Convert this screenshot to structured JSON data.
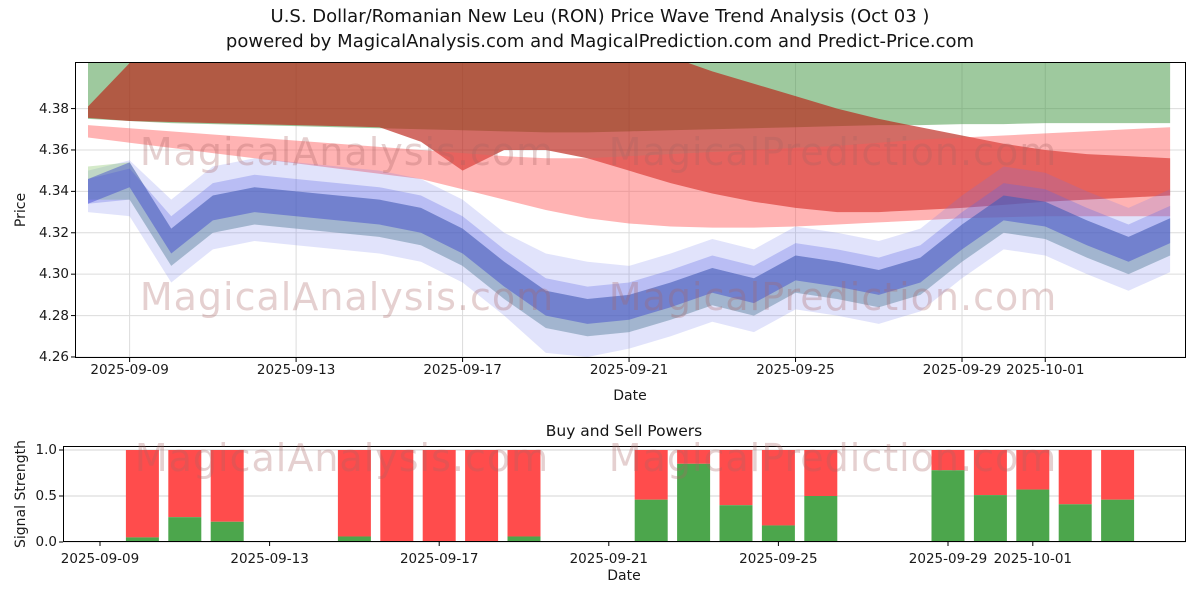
{
  "title": {
    "line1": "U.S. Dollar/Romanian New Leu (RON) Price Wave Trend Analysis (Oct 03 )",
    "line2": "powered by MagicalAnalysis.com and MagicalPrediction.com and Predict-Price.com"
  },
  "watermarks": {
    "analysis": "MagicalAnalysis.com",
    "prediction": "MagicalPrediction.com"
  },
  "chart_data": [
    {
      "name": "price_wave_trend",
      "type": "area",
      "xlabel": "Date",
      "ylabel": "Price",
      "ylim": [
        4.2595,
        4.4025
      ],
      "grid": "both",
      "x_dates": [
        "2025-09-08",
        "2025-09-09",
        "2025-09-10",
        "2025-09-11",
        "2025-09-12",
        "2025-09-13",
        "2025-09-14",
        "2025-09-15",
        "2025-09-16",
        "2025-09-17",
        "2025-09-18",
        "2025-09-19",
        "2025-09-20",
        "2025-09-21",
        "2025-09-22",
        "2025-09-23",
        "2025-09-24",
        "2025-09-25",
        "2025-09-26",
        "2025-09-27",
        "2025-09-28",
        "2025-09-29",
        "2025-09-30",
        "2025-10-01",
        "2025-10-02",
        "2025-10-03",
        "2025-10-04"
      ],
      "x_ticks": [
        {
          "label": "2025-09-09",
          "day": 1
        },
        {
          "label": "2025-09-13",
          "day": 5
        },
        {
          "label": "2025-09-17",
          "day": 9
        },
        {
          "label": "2025-09-21",
          "day": 13
        },
        {
          "label": "2025-09-25",
          "day": 17
        },
        {
          "label": "2025-09-29",
          "day": 21
        },
        {
          "label": "2025-10-01",
          "day": 23
        }
      ],
      "y_ticks": [
        {
          "label": "4.26",
          "value": 4.26
        },
        {
          "label": "4.28",
          "value": 4.28
        },
        {
          "label": "4.30",
          "value": 4.3
        },
        {
          "label": "4.32",
          "value": 4.32
        },
        {
          "label": "4.34",
          "value": 4.34
        },
        {
          "label": "4.36",
          "value": 4.36
        },
        {
          "label": "4.38",
          "value": 4.38
        }
      ],
      "bands": [
        {
          "name": "upper-green-band",
          "color": "rgba(62,148,62,0.50)",
          "top": [
            4.415,
            4.415,
            4.415,
            4.415,
            4.415,
            4.415,
            4.415,
            4.415,
            4.415,
            4.415,
            4.415,
            4.415,
            4.415,
            4.415,
            4.415,
            4.415,
            4.415,
            4.415,
            4.415,
            4.415,
            4.415,
            4.415,
            4.415,
            4.415,
            4.415,
            4.415,
            4.415
          ],
          "bottom": [
            4.375,
            4.374,
            4.373,
            4.3725,
            4.372,
            4.3715,
            4.371,
            4.3705,
            4.37,
            4.3695,
            4.369,
            4.3685,
            4.3685,
            4.369,
            4.3695,
            4.37,
            4.3705,
            4.371,
            4.3715,
            4.372,
            4.372,
            4.3725,
            4.3725,
            4.373,
            4.373,
            4.373,
            4.373
          ]
        },
        {
          "name": "upper-red-band",
          "color": "rgba(186,32,22,0.66)",
          "top": [
            4.381,
            4.402,
            4.415,
            4.415,
            4.415,
            4.415,
            4.415,
            4.415,
            4.415,
            4.415,
            4.415,
            4.415,
            4.414,
            4.412,
            4.405,
            4.398,
            4.392,
            4.386,
            4.38,
            4.375,
            4.371,
            4.367,
            4.363,
            4.36,
            4.358,
            4.357,
            4.356
          ],
          "bottom": [
            4.3755,
            4.374,
            4.3735,
            4.373,
            4.3725,
            4.372,
            4.3715,
            4.371,
            4.364,
            4.35,
            4.36,
            4.36,
            4.356,
            4.35,
            4.344,
            4.339,
            4.335,
            4.332,
            4.33,
            4.33,
            4.331,
            4.332,
            4.3335,
            4.335,
            4.336,
            4.337,
            4.338
          ]
        },
        {
          "name": "pink-band",
          "color": "rgba(255,86,86,0.45)",
          "top": [
            4.372,
            4.3705,
            4.369,
            4.3675,
            4.366,
            4.3645,
            4.363,
            4.3615,
            4.36,
            4.3585,
            4.357,
            4.356,
            4.356,
            4.357,
            4.358,
            4.359,
            4.36,
            4.361,
            4.362,
            4.3635,
            4.365,
            4.366,
            4.367,
            4.368,
            4.369,
            4.37,
            4.371
          ],
          "bottom": [
            4.366,
            4.3635,
            4.361,
            4.3585,
            4.356,
            4.3535,
            4.351,
            4.3485,
            4.346,
            4.341,
            4.336,
            4.331,
            4.327,
            4.3245,
            4.323,
            4.3225,
            4.3225,
            4.323,
            4.324,
            4.325,
            4.326,
            4.327,
            4.3275,
            4.328,
            4.328,
            4.328,
            4.328
          ]
        },
        {
          "name": "blue-wide-band",
          "color": "rgba(105,115,235,0.20)",
          "top": [
            4.35,
            4.355,
            4.336,
            4.352,
            4.356,
            4.354,
            4.352,
            4.35,
            4.346,
            4.336,
            4.32,
            4.31,
            4.306,
            4.304,
            4.31,
            4.317,
            4.312,
            4.323,
            4.32,
            4.316,
            4.322,
            4.338,
            4.352,
            4.349,
            4.34,
            4.332,
            4.341
          ],
          "bottom": [
            4.33,
            4.328,
            4.296,
            4.312,
            4.316,
            4.314,
            4.312,
            4.31,
            4.306,
            4.296,
            4.28,
            4.262,
            4.26,
            4.264,
            4.27,
            4.277,
            4.272,
            4.283,
            4.28,
            4.276,
            4.282,
            4.298,
            4.312,
            4.309,
            4.3,
            4.292,
            4.301
          ]
        },
        {
          "name": "mid-green-band",
          "color": "rgba(128,192,98,0.34)",
          "top": [
            4.352,
            4.354,
            4.322,
            4.338,
            4.342,
            4.34,
            4.338,
            4.336,
            4.332,
            4.322,
            4.306,
            4.292,
            4.288,
            4.29,
            4.296,
            4.303,
            4.298,
            4.309,
            4.306,
            4.302,
            4.308,
            4.324,
            4.338,
            4.335,
            4.326,
            4.318,
            4.327
          ],
          "bottom": [
            4.336,
            4.336,
            4.304,
            4.32,
            4.324,
            4.322,
            4.32,
            4.318,
            4.314,
            4.304,
            4.288,
            4.274,
            4.27,
            4.272,
            4.278,
            4.285,
            4.28,
            4.291,
            4.288,
            4.284,
            4.29,
            4.306,
            4.32,
            4.317,
            4.308,
            4.3,
            4.309
          ]
        },
        {
          "name": "blue-mid-band",
          "color": "rgba(92,102,230,0.30)",
          "top": [
            4.346,
            4.351,
            4.328,
            4.344,
            4.348,
            4.346,
            4.344,
            4.342,
            4.338,
            4.328,
            4.312,
            4.298,
            4.294,
            4.296,
            4.302,
            4.309,
            4.304,
            4.315,
            4.312,
            4.308,
            4.314,
            4.33,
            4.344,
            4.341,
            4.332,
            4.324,
            4.333
          ],
          "bottom": [
            4.334,
            4.336,
            4.304,
            4.32,
            4.324,
            4.322,
            4.32,
            4.318,
            4.314,
            4.304,
            4.288,
            4.274,
            4.27,
            4.272,
            4.278,
            4.285,
            4.28,
            4.291,
            4.288,
            4.284,
            4.29,
            4.306,
            4.32,
            4.317,
            4.308,
            4.3,
            4.309
          ]
        },
        {
          "name": "blue-core-band",
          "color": "rgba(48,58,205,0.42)",
          "top": [
            4.346,
            4.354,
            4.322,
            4.338,
            4.342,
            4.34,
            4.338,
            4.336,
            4.332,
            4.322,
            4.306,
            4.292,
            4.288,
            4.29,
            4.296,
            4.303,
            4.298,
            4.309,
            4.306,
            4.302,
            4.308,
            4.324,
            4.338,
            4.335,
            4.326,
            4.318,
            4.327
          ],
          "bottom": [
            4.334,
            4.342,
            4.31,
            4.326,
            4.33,
            4.328,
            4.326,
            4.324,
            4.32,
            4.31,
            4.294,
            4.28,
            4.276,
            4.278,
            4.284,
            4.291,
            4.286,
            4.297,
            4.294,
            4.29,
            4.296,
            4.312,
            4.326,
            4.323,
            4.314,
            4.306,
            4.315
          ]
        }
      ]
    },
    {
      "name": "buy_sell_powers",
      "type": "bar",
      "title": "Buy and Sell Powers",
      "xlabel": "Date",
      "ylabel": "Signal Strength",
      "ylim": [
        0,
        1.0435
      ],
      "grid": "horizontal",
      "colors": {
        "buy": "#4ca64c",
        "sell": "#ff4c4c"
      },
      "x_ticks": [
        {
          "label": "2025-09-09",
          "day": 1
        },
        {
          "label": "2025-09-13",
          "day": 5
        },
        {
          "label": "2025-09-17",
          "day": 9
        },
        {
          "label": "2025-09-21",
          "day": 13
        },
        {
          "label": "2025-09-25",
          "day": 17
        },
        {
          "label": "2025-09-29",
          "day": 21
        },
        {
          "label": "2025-10-01",
          "day": 23
        }
      ],
      "y_ticks": [
        {
          "label": "0.0",
          "value": 0.0
        },
        {
          "label": "0.5",
          "value": 0.5
        },
        {
          "label": "1.0",
          "value": 1.0
        }
      ],
      "bars": [
        {
          "date": "2025-09-10",
          "day": 2,
          "buy": 0.05,
          "sell": 0.95
        },
        {
          "date": "2025-09-11",
          "day": 3,
          "buy": 0.27,
          "sell": 0.73
        },
        {
          "date": "2025-09-12",
          "day": 4,
          "buy": 0.22,
          "sell": 0.78
        },
        {
          "date": "2025-09-15",
          "day": 7,
          "buy": 0.06,
          "sell": 0.94
        },
        {
          "date": "2025-09-16",
          "day": 8,
          "buy": 0.0,
          "sell": 1.0
        },
        {
          "date": "2025-09-17",
          "day": 9,
          "buy": 0.0,
          "sell": 1.0
        },
        {
          "date": "2025-09-18",
          "day": 10,
          "buy": 0.0,
          "sell": 1.0
        },
        {
          "date": "2025-09-19",
          "day": 11,
          "buy": 0.06,
          "sell": 0.94
        },
        {
          "date": "2025-09-22",
          "day": 14,
          "buy": 0.46,
          "sell": 0.54
        },
        {
          "date": "2025-09-23",
          "day": 15,
          "buy": 0.85,
          "sell": 0.15
        },
        {
          "date": "2025-09-24",
          "day": 16,
          "buy": 0.4,
          "sell": 0.6
        },
        {
          "date": "2025-09-25",
          "day": 17,
          "buy": 0.18,
          "sell": 0.82
        },
        {
          "date": "2025-09-26",
          "day": 18,
          "buy": 0.5,
          "sell": 0.5
        },
        {
          "date": "2025-09-29",
          "day": 21,
          "buy": 0.78,
          "sell": 0.22
        },
        {
          "date": "2025-09-30",
          "day": 22,
          "buy": 0.51,
          "sell": 0.49
        },
        {
          "date": "2025-10-01",
          "day": 23,
          "buy": 0.57,
          "sell": 0.43
        },
        {
          "date": "2025-10-02",
          "day": 24,
          "buy": 0.41,
          "sell": 0.59
        },
        {
          "date": "2025-10-03",
          "day": 25,
          "buy": 0.46,
          "sell": 0.54
        }
      ]
    }
  ]
}
